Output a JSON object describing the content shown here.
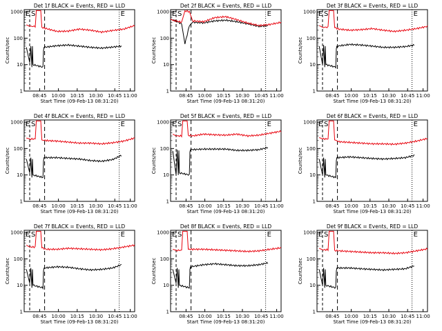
{
  "figure": {
    "time_ticks": [
      "08:45",
      "10:00",
      "10:15",
      "10:30",
      "10:45",
      "11:00"
    ],
    "y_ticks": [
      "1",
      "10",
      "100",
      "1000"
    ],
    "xlabel": "Start Time (09-Feb-13 08:31:20)",
    "ylabel": "Counts/sec",
    "marker_s": "S",
    "marker_e": "E"
  },
  "chart_data": [
    {
      "type": "line",
      "title": "Det 1f BLACK = Events, RED = LLD",
      "xlabel": "Start Time (09-Feb-13 08:31:20)",
      "ylabel": "Counts/sec",
      "yscale": "log",
      "ylim": [
        1,
        1200
      ],
      "x_tick_labels": [
        "08:45",
        "10:00",
        "10:15",
        "10:30",
        "10:45",
        "11:00"
      ],
      "colors": {
        "events": "#000000",
        "lld": "#e8000b"
      },
      "series": [
        {
          "name": "BLACK = Events",
          "x": [
            0.02,
            0.05,
            0.06,
            0.07,
            0.075,
            0.08,
            0.17,
            0.175,
            0.18,
            0.3,
            0.4,
            0.5,
            0.6,
            0.7,
            0.8,
            0.88
          ],
          "y": [
            45,
            12,
            50,
            8,
            50,
            10,
            8,
            35,
            45,
            52,
            55,
            50,
            45,
            42,
            46,
            50
          ]
        },
        {
          "name": "RED = LLD",
          "x": [
            0.02,
            0.05,
            0.1,
            0.11,
            0.13,
            0.15,
            0.16,
            0.2,
            0.3,
            0.4,
            0.5,
            0.6,
            0.7,
            0.8,
            0.9,
            1.0
          ],
          "y": [
            320,
            280,
            280,
            1100,
            1100,
            1100,
            260,
            230,
            180,
            185,
            220,
            200,
            170,
            195,
            220,
            300
          ]
        }
      ]
    },
    {
      "type": "line",
      "title": "Det 2f BLACK = Events, RED = LLD",
      "xlabel": "Start Time (09-Feb-13 08:31:20)",
      "ylabel": "Counts/sec",
      "yscale": "log",
      "ylim": [
        1,
        1200
      ],
      "x_tick_labels": [
        "08:45",
        "10:00",
        "10:15",
        "10:30",
        "10:45",
        "11:00"
      ],
      "colors": {
        "events": "#000000",
        "lld": "#e8000b"
      },
      "series": [
        {
          "name": "BLACK = Events",
          "x": [
            0.02,
            0.1,
            0.13,
            0.17,
            0.2,
            0.3,
            0.4,
            0.5,
            0.6,
            0.7,
            0.8,
            0.88
          ],
          "y": [
            500,
            350,
            60,
            300,
            400,
            380,
            450,
            480,
            420,
            350,
            280,
            300
          ]
        },
        {
          "name": "RED = LLD",
          "x": [
            0.0,
            0.1,
            0.13,
            0.17,
            0.2,
            0.3,
            0.4,
            0.5,
            0.6,
            0.7,
            0.8,
            0.9,
            1.0
          ],
          "y": [
            500,
            400,
            1100,
            1000,
            450,
            420,
            600,
            650,
            500,
            370,
            300,
            330,
            400
          ]
        }
      ]
    },
    {
      "type": "line",
      "title": "Det 3f BLACK = Events, RED = LLD",
      "xlabel": "Start Time (09-Feb-13 08:31:20)",
      "ylabel": "Counts/sec",
      "yscale": "log",
      "ylim": [
        1,
        1200
      ],
      "x_tick_labels": [
        "08:45",
        "10:00",
        "10:15",
        "10:30",
        "10:45",
        "11:00"
      ],
      "colors": {
        "events": "#000000",
        "lld": "#e8000b"
      },
      "series": [
        {
          "name": "BLACK = Events",
          "x": [
            0.02,
            0.05,
            0.06,
            0.07,
            0.075,
            0.08,
            0.17,
            0.175,
            0.18,
            0.3,
            0.4,
            0.5,
            0.6,
            0.7,
            0.8,
            0.88
          ],
          "y": [
            50,
            10,
            55,
            8,
            50,
            10,
            8,
            40,
            50,
            58,
            55,
            50,
            45,
            45,
            48,
            55
          ]
        },
        {
          "name": "RED = LLD",
          "x": [
            0.02,
            0.05,
            0.1,
            0.11,
            0.13,
            0.15,
            0.16,
            0.2,
            0.3,
            0.4,
            0.5,
            0.6,
            0.7,
            0.8,
            0.9,
            1.0
          ],
          "y": [
            300,
            260,
            260,
            1100,
            1100,
            1100,
            250,
            220,
            200,
            210,
            230,
            200,
            180,
            200,
            230,
            280
          ]
        }
      ]
    },
    {
      "type": "line",
      "title": "Det 4f BLACK = Events, RED = LLD",
      "xlabel": "Start Time (09-Feb-13 08:31:20)",
      "ylabel": "Counts/sec",
      "yscale": "log",
      "ylim": [
        1,
        1200
      ],
      "x_tick_labels": [
        "08:45",
        "10:00",
        "10:15",
        "10:30",
        "10:45",
        "11:00"
      ],
      "colors": {
        "events": "#000000",
        "lld": "#e8000b"
      },
      "series": [
        {
          "name": "BLACK = Events",
          "x": [
            0.02,
            0.05,
            0.06,
            0.07,
            0.075,
            0.08,
            0.17,
            0.175,
            0.18,
            0.3,
            0.4,
            0.5,
            0.6,
            0.7,
            0.8,
            0.88
          ],
          "y": [
            40,
            12,
            45,
            8,
            40,
            10,
            8,
            35,
            45,
            45,
            42,
            40,
            35,
            33,
            38,
            55
          ]
        },
        {
          "name": "RED = LLD",
          "x": [
            0.02,
            0.05,
            0.1,
            0.11,
            0.13,
            0.15,
            0.16,
            0.2,
            0.3,
            0.4,
            0.5,
            0.6,
            0.7,
            0.8,
            0.9,
            1.0
          ],
          "y": [
            250,
            230,
            230,
            1100,
            1100,
            1100,
            210,
            200,
            190,
            175,
            160,
            160,
            150,
            165,
            190,
            250
          ]
        }
      ]
    },
    {
      "type": "line",
      "title": "Det 5f BLACK = Events, RED = LLD",
      "xlabel": "Start Time (09-Feb-13 08:31:20)",
      "ylabel": "Counts/sec",
      "yscale": "log",
      "ylim": [
        1,
        1200
      ],
      "x_tick_labels": [
        "08:45",
        "10:00",
        "10:15",
        "10:30",
        "10:45",
        "11:00"
      ],
      "colors": {
        "events": "#000000",
        "lld": "#e8000b"
      },
      "series": [
        {
          "name": "BLACK = Events",
          "x": [
            0.02,
            0.05,
            0.06,
            0.07,
            0.075,
            0.08,
            0.17,
            0.175,
            0.18,
            0.3,
            0.4,
            0.5,
            0.6,
            0.7,
            0.8,
            0.88
          ],
          "y": [
            80,
            10,
            90,
            10,
            85,
            12,
            10,
            75,
            90,
            95,
            95,
            95,
            85,
            85,
            90,
            110
          ]
        },
        {
          "name": "RED = LLD",
          "x": [
            0.02,
            0.05,
            0.1,
            0.11,
            0.13,
            0.15,
            0.16,
            0.2,
            0.3,
            0.4,
            0.5,
            0.6,
            0.7,
            0.8,
            0.9,
            1.0
          ],
          "y": [
            350,
            300,
            300,
            1100,
            1100,
            1100,
            320,
            300,
            350,
            330,
            320,
            350,
            300,
            320,
            380,
            450
          ]
        }
      ]
    },
    {
      "type": "line",
      "title": "Det 6f BLACK = Events, RED = LLD",
      "xlabel": "Start Time (09-Feb-13 08:31:20)",
      "ylabel": "Counts/sec",
      "yscale": "log",
      "ylim": [
        1,
        1200
      ],
      "x_tick_labels": [
        "08:45",
        "10:00",
        "10:15",
        "10:30",
        "10:45",
        "11:00"
      ],
      "colors": {
        "events": "#000000",
        "lld": "#e8000b"
      },
      "series": [
        {
          "name": "BLACK = Events",
          "x": [
            0.02,
            0.05,
            0.06,
            0.07,
            0.075,
            0.08,
            0.17,
            0.175,
            0.18,
            0.3,
            0.4,
            0.5,
            0.6,
            0.7,
            0.8,
            0.88
          ],
          "y": [
            40,
            10,
            45,
            8,
            40,
            10,
            8,
            35,
            45,
            48,
            45,
            42,
            40,
            42,
            45,
            55
          ]
        },
        {
          "name": "RED = LLD",
          "x": [
            0.02,
            0.05,
            0.1,
            0.11,
            0.13,
            0.15,
            0.16,
            0.2,
            0.3,
            0.4,
            0.5,
            0.6,
            0.7,
            0.8,
            0.9,
            1.0
          ],
          "y": [
            260,
            230,
            230,
            1100,
            1100,
            1100,
            210,
            180,
            170,
            160,
            150,
            150,
            145,
            160,
            190,
            240
          ]
        }
      ]
    },
    {
      "type": "line",
      "title": "Det 7f BLACK = Events, RED = LLD",
      "xlabel": "Start Time (09-Feb-13 08:31:20)",
      "ylabel": "Counts/sec",
      "yscale": "log",
      "ylim": [
        1,
        1200
      ],
      "x_tick_labels": [
        "08:45",
        "10:00",
        "10:15",
        "10:30",
        "10:45",
        "11:00"
      ],
      "colors": {
        "events": "#000000",
        "lld": "#e8000b"
      },
      "series": [
        {
          "name": "BLACK = Events",
          "x": [
            0.02,
            0.05,
            0.06,
            0.07,
            0.075,
            0.08,
            0.17,
            0.175,
            0.18,
            0.3,
            0.4,
            0.5,
            0.6,
            0.7,
            0.8,
            0.88
          ],
          "y": [
            40,
            12,
            45,
            8,
            40,
            10,
            8,
            35,
            45,
            50,
            48,
            42,
            38,
            40,
            45,
            60
          ]
        },
        {
          "name": "RED = LLD",
          "x": [
            0.02,
            0.05,
            0.1,
            0.11,
            0.13,
            0.15,
            0.16,
            0.2,
            0.3,
            0.4,
            0.5,
            0.6,
            0.7,
            0.8,
            0.9,
            1.0
          ],
          "y": [
            330,
            280,
            280,
            1100,
            1100,
            1100,
            260,
            230,
            230,
            250,
            240,
            230,
            220,
            240,
            280,
            330
          ]
        }
      ]
    },
    {
      "type": "line",
      "title": "Det 8f BLACK = Events, RED = LLD",
      "xlabel": "Start Time (09-Feb-13 08:31:20)",
      "ylabel": "Counts/sec",
      "yscale": "log",
      "ylim": [
        1,
        1200
      ],
      "x_tick_labels": [
        "08:45",
        "10:00",
        "10:15",
        "10:30",
        "10:45",
        "11:00"
      ],
      "colors": {
        "events": "#000000",
        "lld": "#e8000b"
      },
      "series": [
        {
          "name": "BLACK = Events",
          "x": [
            0.02,
            0.05,
            0.06,
            0.07,
            0.075,
            0.08,
            0.17,
            0.175,
            0.18,
            0.3,
            0.4,
            0.5,
            0.6,
            0.7,
            0.8,
            0.88
          ],
          "y": [
            40,
            12,
            45,
            8,
            40,
            10,
            8,
            40,
            50,
            60,
            65,
            60,
            55,
            55,
            60,
            70
          ]
        },
        {
          "name": "RED = LLD",
          "x": [
            0.02,
            0.05,
            0.1,
            0.11,
            0.13,
            0.15,
            0.16,
            0.2,
            0.3,
            0.4,
            0.5,
            0.6,
            0.7,
            0.8,
            0.9,
            1.0
          ],
          "y": [
            230,
            210,
            210,
            1100,
            1100,
            1100,
            230,
            230,
            230,
            220,
            210,
            200,
            190,
            200,
            230,
            260
          ]
        }
      ]
    },
    {
      "type": "line",
      "title": "Det 9f BLACK = Events, RED = LLD",
      "xlabel": "Start Time (09-Feb-13 08:31:20)",
      "ylabel": "Counts/sec",
      "yscale": "log",
      "ylim": [
        1,
        1200
      ],
      "x_tick_labels": [
        "08:45",
        "10:00",
        "10:15",
        "10:30",
        "10:45",
        "11:00"
      ],
      "colors": {
        "events": "#000000",
        "lld": "#e8000b"
      },
      "series": [
        {
          "name": "BLACK = Events",
          "x": [
            0.02,
            0.05,
            0.06,
            0.07,
            0.075,
            0.08,
            0.17,
            0.175,
            0.18,
            0.3,
            0.4,
            0.5,
            0.6,
            0.7,
            0.8,
            0.88
          ],
          "y": [
            40,
            10,
            45,
            8,
            40,
            10,
            8,
            35,
            45,
            45,
            42,
            40,
            38,
            40,
            42,
            55
          ]
        },
        {
          "name": "RED = LLD",
          "x": [
            0.02,
            0.05,
            0.1,
            0.11,
            0.13,
            0.15,
            0.16,
            0.2,
            0.3,
            0.4,
            0.5,
            0.6,
            0.7,
            0.8,
            0.9,
            1.0
          ],
          "y": [
            250,
            220,
            220,
            1100,
            1100,
            1100,
            210,
            200,
            190,
            180,
            170,
            170,
            160,
            170,
            200,
            240
          ]
        }
      ]
    }
  ]
}
